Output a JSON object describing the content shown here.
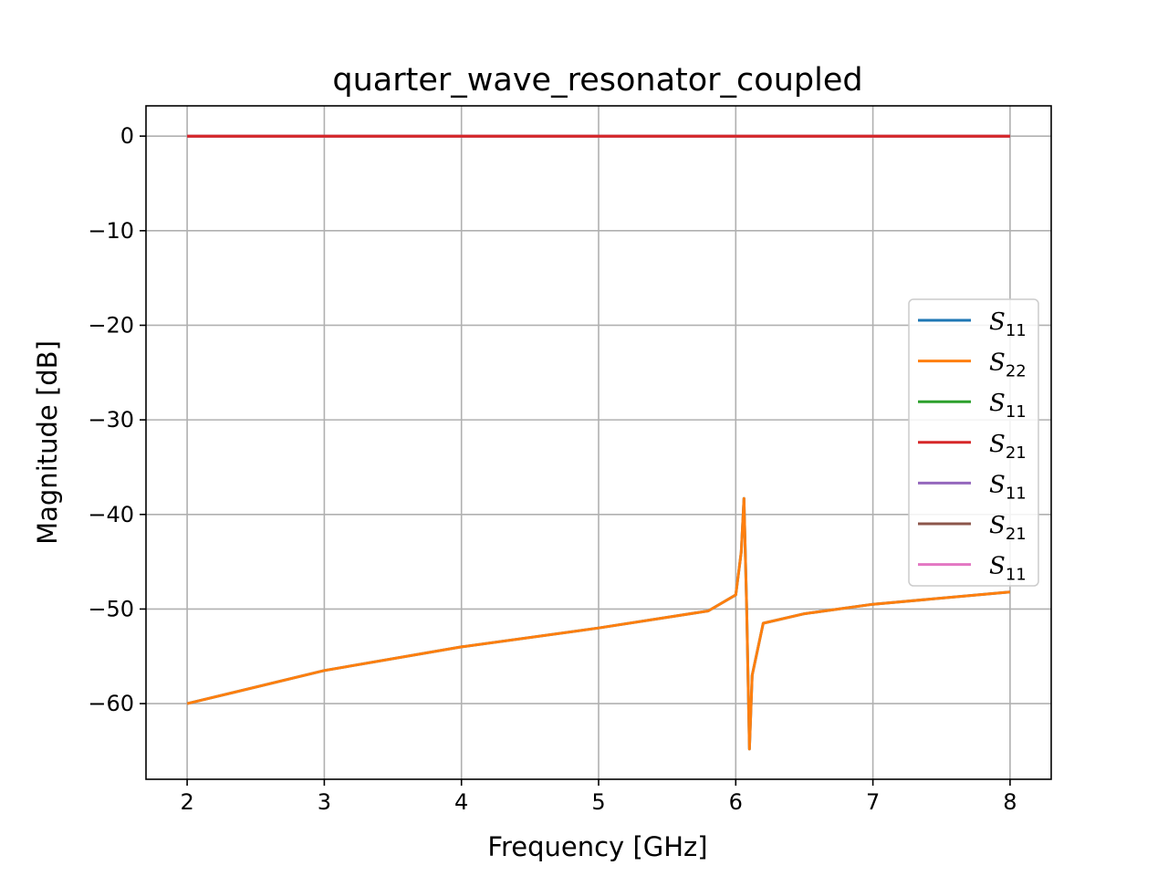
{
  "chart_data": {
    "type": "line",
    "title": "quarter_wave_resonator_coupled",
    "xlabel": "Frequency [GHz]",
    "ylabel": "Magnitude [dB]",
    "xlim": [
      1.7,
      8.3
    ],
    "ylim": [
      -68,
      3.2
    ],
    "xticks": [
      2,
      3,
      4,
      5,
      6,
      7,
      8
    ],
    "yticks": [
      0,
      -10,
      -20,
      -30,
      -40,
      -50,
      -60
    ],
    "xtick_labels": [
      "2",
      "3",
      "4",
      "5",
      "6",
      "7",
      "8"
    ],
    "ytick_labels": [
      "0",
      "−10",
      "−20",
      "−30",
      "−40",
      "−50",
      "−60"
    ],
    "grid": true,
    "legend_position": "center-right",
    "resonance": {
      "f0": 6.06,
      "peak_db": -38.3,
      "notch_freq": 6.1,
      "notch_db": -64.8
    },
    "series": [
      {
        "name": "S11",
        "label_main": "S",
        "label_sub": "11",
        "color": "#1f77b4",
        "x": [
          2.0,
          3.0,
          4.0,
          5.0,
          5.8,
          6.0,
          6.04,
          6.06,
          6.08,
          6.1,
          6.12,
          6.2,
          6.5,
          7.0,
          8.0
        ],
        "y": [
          -60.0,
          -56.5,
          -54.0,
          -52.0,
          -50.2,
          -48.5,
          -44.0,
          -38.3,
          -50.0,
          -64.8,
          -57.0,
          -51.5,
          -50.5,
          -49.5,
          -48.2
        ]
      },
      {
        "name": "S22",
        "label_main": "S",
        "label_sub": "22",
        "color": "#ff7f0e",
        "x": [
          2.0,
          3.0,
          4.0,
          5.0,
          5.8,
          6.0,
          6.04,
          6.06,
          6.08,
          6.1,
          6.12,
          6.2,
          6.5,
          7.0,
          8.0
        ],
        "y": [
          -60.0,
          -56.5,
          -54.0,
          -52.0,
          -50.2,
          -48.5,
          -44.0,
          -38.3,
          -50.0,
          -64.8,
          -57.0,
          -51.5,
          -50.5,
          -49.5,
          -48.2
        ]
      },
      {
        "name": "S11",
        "label_main": "S",
        "label_sub": "11",
        "color": "#2ca02c",
        "x": [
          2.0,
          8.0
        ],
        "y": [
          0,
          0
        ]
      },
      {
        "name": "S21",
        "label_main": "S",
        "label_sub": "21",
        "color": "#d62728",
        "x": [
          2.0,
          8.0
        ],
        "y": [
          0,
          0
        ]
      },
      {
        "name": "S11",
        "label_main": "S",
        "label_sub": "11",
        "color": "#9467bd",
        "x": [
          2.0,
          8.0
        ],
        "y": [
          0,
          0
        ]
      },
      {
        "name": "S21",
        "label_main": "S",
        "label_sub": "21",
        "color": "#8c564b",
        "x": [
          2.0,
          8.0
        ],
        "y": [
          0,
          0
        ]
      },
      {
        "name": "S11",
        "label_main": "S",
        "label_sub": "11",
        "color": "#e377c2",
        "x": [
          2.0,
          8.0
        ],
        "y": [
          0,
          0
        ]
      }
    ]
  }
}
